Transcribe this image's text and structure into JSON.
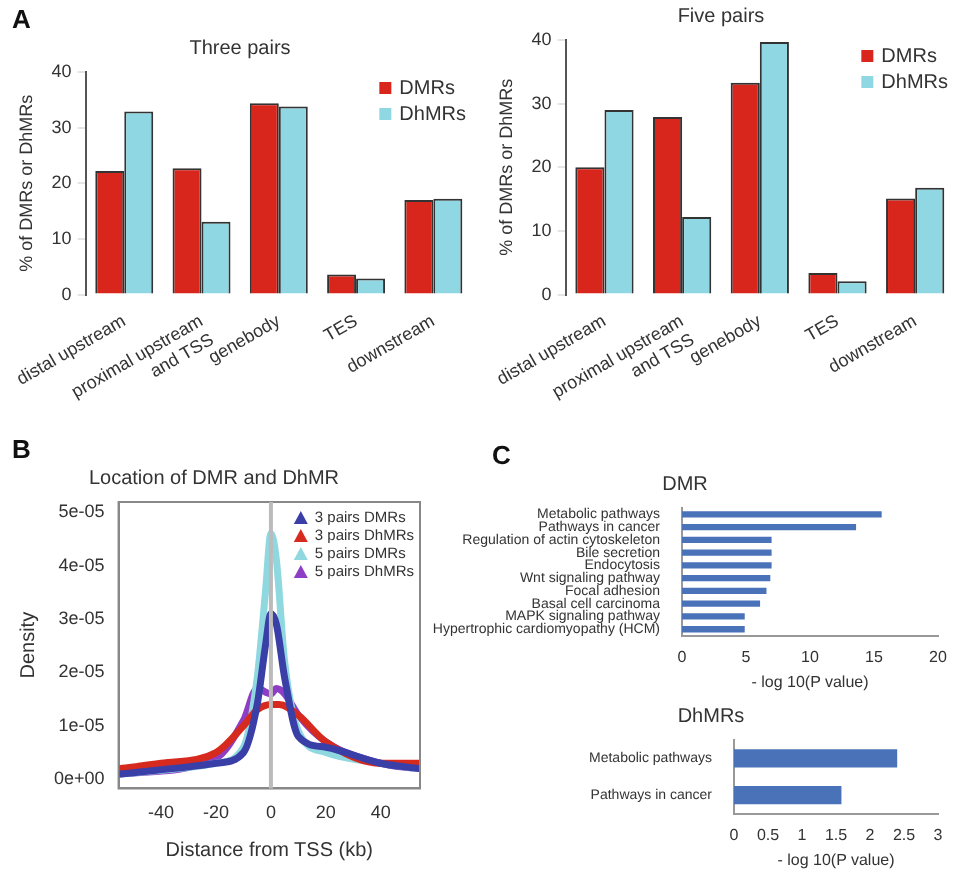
{
  "chart_data": [
    {
      "type": "bar",
      "title": "Three pairs",
      "ylabel": "% of DMRs or DhMRs",
      "categories": [
        "distal upstream",
        "proximal upstream\nand TSS",
        "genebody",
        "TES",
        "downstream"
      ],
      "series": [
        {
          "name": "DMRs",
          "color": "#d9261c",
          "values": [
            22.2,
            22.7,
            34.4,
            3.6,
            17.0
          ]
        },
        {
          "name": "DhMRs",
          "color": "#8fd8e3",
          "values": [
            32.9,
            13.1,
            33.8,
            2.9,
            17.2
          ]
        }
      ],
      "ylim": [
        0,
        40
      ],
      "yticks": [
        0,
        10,
        20,
        30,
        40
      ],
      "grid": false,
      "legend": "top right",
      "annotations": [
        "A"
      ]
    },
    {
      "type": "bar",
      "title": "Five pairs",
      "ylabel": "% of DMRs or DhMRs",
      "categories": [
        "distal upstream",
        "proximal upstream\nand TSS",
        "genebody",
        "TES",
        "downstream"
      ],
      "series": [
        {
          "name": "DMRs",
          "color": "#d9261c",
          "values": [
            20.0,
            27.9,
            33.3,
            3.4,
            15.1
          ]
        },
        {
          "name": "DhMRs",
          "color": "#8fd8e3",
          "values": [
            29.0,
            12.2,
            39.7,
            2.1,
            16.8
          ]
        }
      ],
      "ylim": [
        0,
        40
      ],
      "yticks": [
        0,
        10,
        20,
        30,
        40
      ],
      "grid": false,
      "legend": "top right"
    },
    {
      "type": "line",
      "title": "Location of DMR and DhMR",
      "xlabel": "Distance from TSS (kb)",
      "ylabel": "Density",
      "series": [
        {
          "name": "3 pairs DMRs",
          "color": "#3a3fa8",
          "x": [
            -55,
            -20,
            -10,
            -5,
            -2,
            0,
            2,
            5,
            10,
            20,
            40,
            54
          ],
          "values": [
            1e-06,
            3e-06,
            5e-06,
            1.4e-05,
            2.5e-05,
            3.1e-05,
            2.9e-05,
            1.9e-05,
            8e-06,
            6e-06,
            3e-06,
            2e-06
          ]
        },
        {
          "name": "3 pairs DhMRs",
          "color": "#d62a1e",
          "x": [
            -55,
            -40,
            -20,
            -10,
            -5,
            0,
            3,
            10,
            20,
            40,
            54
          ],
          "values": [
            2e-06,
            3e-06,
            5e-06,
            1e-05,
            1.3e-05,
            1.4e-05,
            1.4e-05,
            1.2e-05,
            7e-06,
            3e-06,
            3e-06
          ]
        },
        {
          "name": "5 pairs DMRs",
          "color": "#8fd8e0",
          "x": [
            -55,
            -20,
            -10,
            -5,
            -2,
            0,
            2,
            5,
            10,
            20,
            40,
            54
          ],
          "values": [
            1e-06,
            3e-06,
            6e-06,
            1.9e-05,
            3.5e-05,
            4.6e-05,
            4.1e-05,
            2.2e-05,
            9e-06,
            5e-06,
            3e-06,
            2e-06
          ]
        },
        {
          "name": "5 pairs DhMRs",
          "color": "#8e3ec4",
          "x": [
            -55,
            -20,
            -10,
            -5,
            0,
            2,
            5,
            10,
            20,
            40,
            54
          ],
          "values": [
            1e-06,
            4e-06,
            1.1e-05,
            1.7e-05,
            1.6e-05,
            1.7e-05,
            1.6e-05,
            1.2e-05,
            7e-06,
            3e-06,
            2e-06
          ]
        }
      ],
      "xlim": [
        -55.5,
        54.3
      ],
      "xticks": [
        -40,
        -20,
        0,
        20,
        40
      ],
      "ylim": [
        -1.7e-06,
        5.19e-05
      ],
      "yticks": [
        {
          "value": 0,
          "label": "0e+00"
        },
        {
          "value": 1e-05,
          "label": "1e-05"
        },
        {
          "value": 2e-05,
          "label": "2e-05"
        },
        {
          "value": 3e-05,
          "label": "3e-05"
        },
        {
          "value": 4e-05,
          "label": "4e-05"
        },
        {
          "value": 5e-05,
          "label": "5e-05"
        }
      ],
      "ref_lines": [
        {
          "axis": "x",
          "value": 0,
          "color": "#bbbbbb"
        }
      ],
      "grid": false,
      "legend": "top right",
      "annotations": [
        "B"
      ]
    },
    {
      "type": "bar",
      "orientation": "horizontal",
      "title": "DMR",
      "xlabel": "- log 10(P value)",
      "categories": [
        "Metabolic pathways",
        "Pathways in cancer",
        "Regulation of actin cytoskeleton",
        "Bile secretion",
        "Endocytosis",
        "Wnt signaling pathway",
        "Focal adhesion",
        "Basal cell carcinoma",
        "MAPK signaling pathway",
        "Hypertrophic cardiomyopathy (HCM)"
      ],
      "values": [
        15.6,
        13.6,
        7.0,
        7.0,
        7.0,
        6.9,
        6.6,
        6.1,
        4.9,
        4.9
      ],
      "color": "#4a72b8",
      "xlim": [
        0,
        20
      ],
      "xticks": [
        0,
        5,
        10,
        15,
        20
      ],
      "grid": false,
      "annotations": [
        "C"
      ]
    },
    {
      "type": "bar",
      "orientation": "horizontal",
      "title": "DhMRs",
      "xlabel": "- log 10(P value)",
      "categories": [
        "Metabolic pathways",
        "Pathways in cancer"
      ],
      "values": [
        2.4,
        1.58
      ],
      "color": "#4a72b8",
      "xlim": [
        0,
        3
      ],
      "xticks": [
        0,
        0.5,
        1,
        1.5,
        2,
        2.5,
        3
      ],
      "grid": false
    }
  ]
}
